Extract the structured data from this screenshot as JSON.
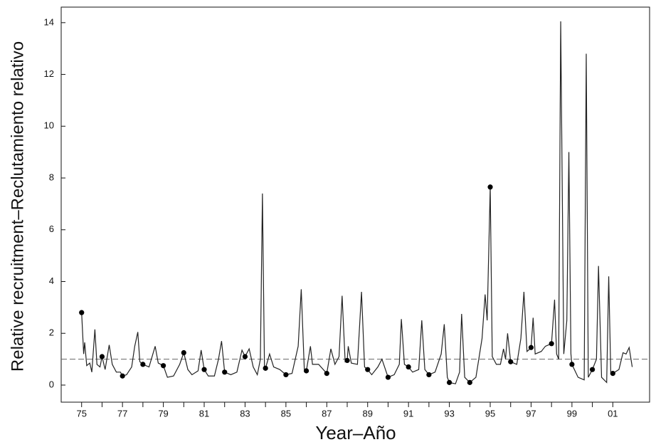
{
  "chart_data": {
    "type": "line",
    "x_label": "Year–Año",
    "y_label": "Relative recruitment–Reclutamiento relativo",
    "xlim": [
      1974,
      2002.8
    ],
    "ylim": [
      -0.66,
      14.6
    ],
    "yticks": [
      0,
      2,
      4,
      6,
      8,
      10,
      12,
      14
    ],
    "xticks": [
      {
        "value": 1975,
        "label": "75"
      },
      {
        "value": 1977,
        "label": "77"
      },
      {
        "value": 1979,
        "label": "79"
      },
      {
        "value": 1981,
        "label": "81"
      },
      {
        "value": 1983,
        "label": "83"
      },
      {
        "value": 1985,
        "label": "85"
      },
      {
        "value": 1987,
        "label": "87"
      },
      {
        "value": 1989,
        "label": "89"
      },
      {
        "value": 1991,
        "label": "91"
      },
      {
        "value": 1993,
        "label": "93"
      },
      {
        "value": 1995,
        "label": "95"
      },
      {
        "value": 1997,
        "label": "97"
      },
      {
        "value": 1999,
        "label": "99"
      },
      {
        "value": 2001,
        "label": "01"
      }
    ],
    "xminor_ticks": [
      1976,
      1978,
      1980,
      1982,
      1984,
      1986,
      1988,
      1990,
      1992,
      1994,
      1996,
      1998,
      2000
    ],
    "reference_line": 1,
    "color": "#222222",
    "x": [
      1975.0,
      1975.1,
      1975.15,
      1975.25,
      1975.4,
      1975.5,
      1975.65,
      1975.75,
      1975.9,
      1976.0,
      1976.15,
      1976.35,
      1976.5,
      1976.7,
      1976.9,
      1977.0,
      1977.2,
      1977.45,
      1977.6,
      1977.75,
      1977.85,
      1978.0,
      1978.3,
      1978.6,
      1978.75,
      1979.0,
      1979.2,
      1979.5,
      1979.8,
      1980.0,
      1980.2,
      1980.4,
      1980.7,
      1980.85,
      1981.0,
      1981.2,
      1981.5,
      1981.7,
      1981.85,
      1982.0,
      1982.3,
      1982.6,
      1982.85,
      1983.0,
      1983.2,
      1983.4,
      1983.6,
      1983.75,
      1983.85,
      1983.95,
      1984.0,
      1984.2,
      1984.4,
      1984.7,
      1985.0,
      1985.3,
      1985.6,
      1985.75,
      1985.9,
      1986.0,
      1986.2,
      1986.3,
      1986.6,
      1987.0,
      1987.2,
      1987.4,
      1987.6,
      1987.75,
      1987.9,
      1988.0,
      1988.05,
      1988.2,
      1988.5,
      1988.7,
      1988.85,
      1989.0,
      1989.2,
      1989.5,
      1989.7,
      1990.0,
      1990.3,
      1990.55,
      1990.65,
      1990.8,
      1991.0,
      1991.2,
      1991.5,
      1991.65,
      1991.8,
      1992.0,
      1992.3,
      1992.6,
      1992.75,
      1992.9,
      1993.0,
      1993.3,
      1993.5,
      1993.6,
      1993.75,
      1994.0,
      1994.3,
      1994.6,
      1994.75,
      1994.85,
      1995.0,
      1995.1,
      1995.3,
      1995.5,
      1995.65,
      1995.75,
      1995.85,
      1996.0,
      1996.3,
      1996.5,
      1996.65,
      1996.8,
      1996.95,
      1997.0,
      1997.1,
      1997.2,
      1997.5,
      1997.7,
      1998.0,
      1998.15,
      1998.25,
      1998.35,
      1998.45,
      1998.6,
      1998.75,
      1998.85,
      1998.95,
      1999.0,
      1999.3,
      1999.6,
      1999.7,
      1999.8,
      2000.0,
      2000.2,
      2000.3,
      2000.45,
      2000.7,
      2000.8,
      2000.9,
      2001.0,
      2001.3,
      2001.5,
      2001.65,
      2001.8,
      2001.95
    ],
    "values": [
      2.8,
      1.2,
      1.65,
      0.75,
      0.85,
      0.5,
      2.15,
      0.8,
      0.7,
      1.1,
      0.6,
      1.55,
      0.8,
      0.5,
      0.5,
      0.35,
      0.4,
      0.7,
      1.5,
      2.05,
      0.9,
      0.8,
      0.7,
      1.5,
      0.85,
      0.75,
      0.3,
      0.35,
      0.8,
      1.25,
      0.6,
      0.4,
      0.55,
      1.35,
      0.6,
      0.35,
      0.35,
      1.0,
      1.7,
      0.5,
      0.4,
      0.5,
      1.35,
      1.1,
      1.4,
      0.7,
      0.4,
      1.0,
      7.4,
      0.7,
      0.65,
      1.2,
      0.7,
      0.6,
      0.4,
      0.45,
      1.5,
      3.7,
      0.6,
      0.55,
      1.5,
      0.8,
      0.8,
      0.45,
      1.4,
      0.8,
      1.1,
      3.45,
      0.9,
      0.95,
      1.5,
      0.85,
      0.8,
      3.6,
      0.7,
      0.6,
      0.4,
      0.7,
      1.0,
      0.3,
      0.4,
      0.8,
      2.55,
      0.8,
      0.7,
      0.5,
      0.6,
      2.5,
      0.6,
      0.4,
      0.5,
      1.2,
      2.35,
      0.3,
      0.1,
      0.05,
      0.5,
      2.75,
      0.3,
      0.1,
      0.3,
      1.8,
      3.5,
      2.5,
      7.65,
      1.1,
      0.8,
      0.8,
      1.4,
      1.0,
      2.0,
      0.9,
      0.8,
      1.8,
      3.6,
      1.3,
      1.4,
      1.45,
      2.6,
      1.2,
      1.3,
      1.5,
      1.6,
      3.3,
      1.2,
      1.0,
      14.05,
      1.2,
      2.5,
      9.0,
      1.2,
      0.8,
      0.3,
      0.2,
      12.8,
      0.3,
      0.6,
      1.0,
      4.6,
      0.3,
      0.1,
      4.2,
      0.5,
      0.45,
      0.6,
      1.25,
      1.2,
      1.45,
      0.7
    ],
    "markers": {
      "x": [
        1975,
        1976,
        1977,
        1978,
        1979,
        1980,
        1981,
        1982,
        1983,
        1984,
        1985,
        1986,
        1987,
        1988,
        1989,
        1990,
        1991,
        1992,
        1993,
        1994,
        1995,
        1996,
        1997,
        1998,
        1999,
        2000,
        2001
      ],
      "values": [
        2.8,
        1.1,
        0.35,
        0.8,
        0.75,
        1.25,
        0.6,
        0.5,
        1.1,
        0.65,
        0.4,
        0.55,
        0.45,
        0.95,
        0.6,
        0.3,
        0.7,
        0.4,
        0.1,
        0.1,
        7.65,
        0.9,
        1.45,
        1.6,
        0.8,
        0.6,
        0.45
      ]
    }
  }
}
